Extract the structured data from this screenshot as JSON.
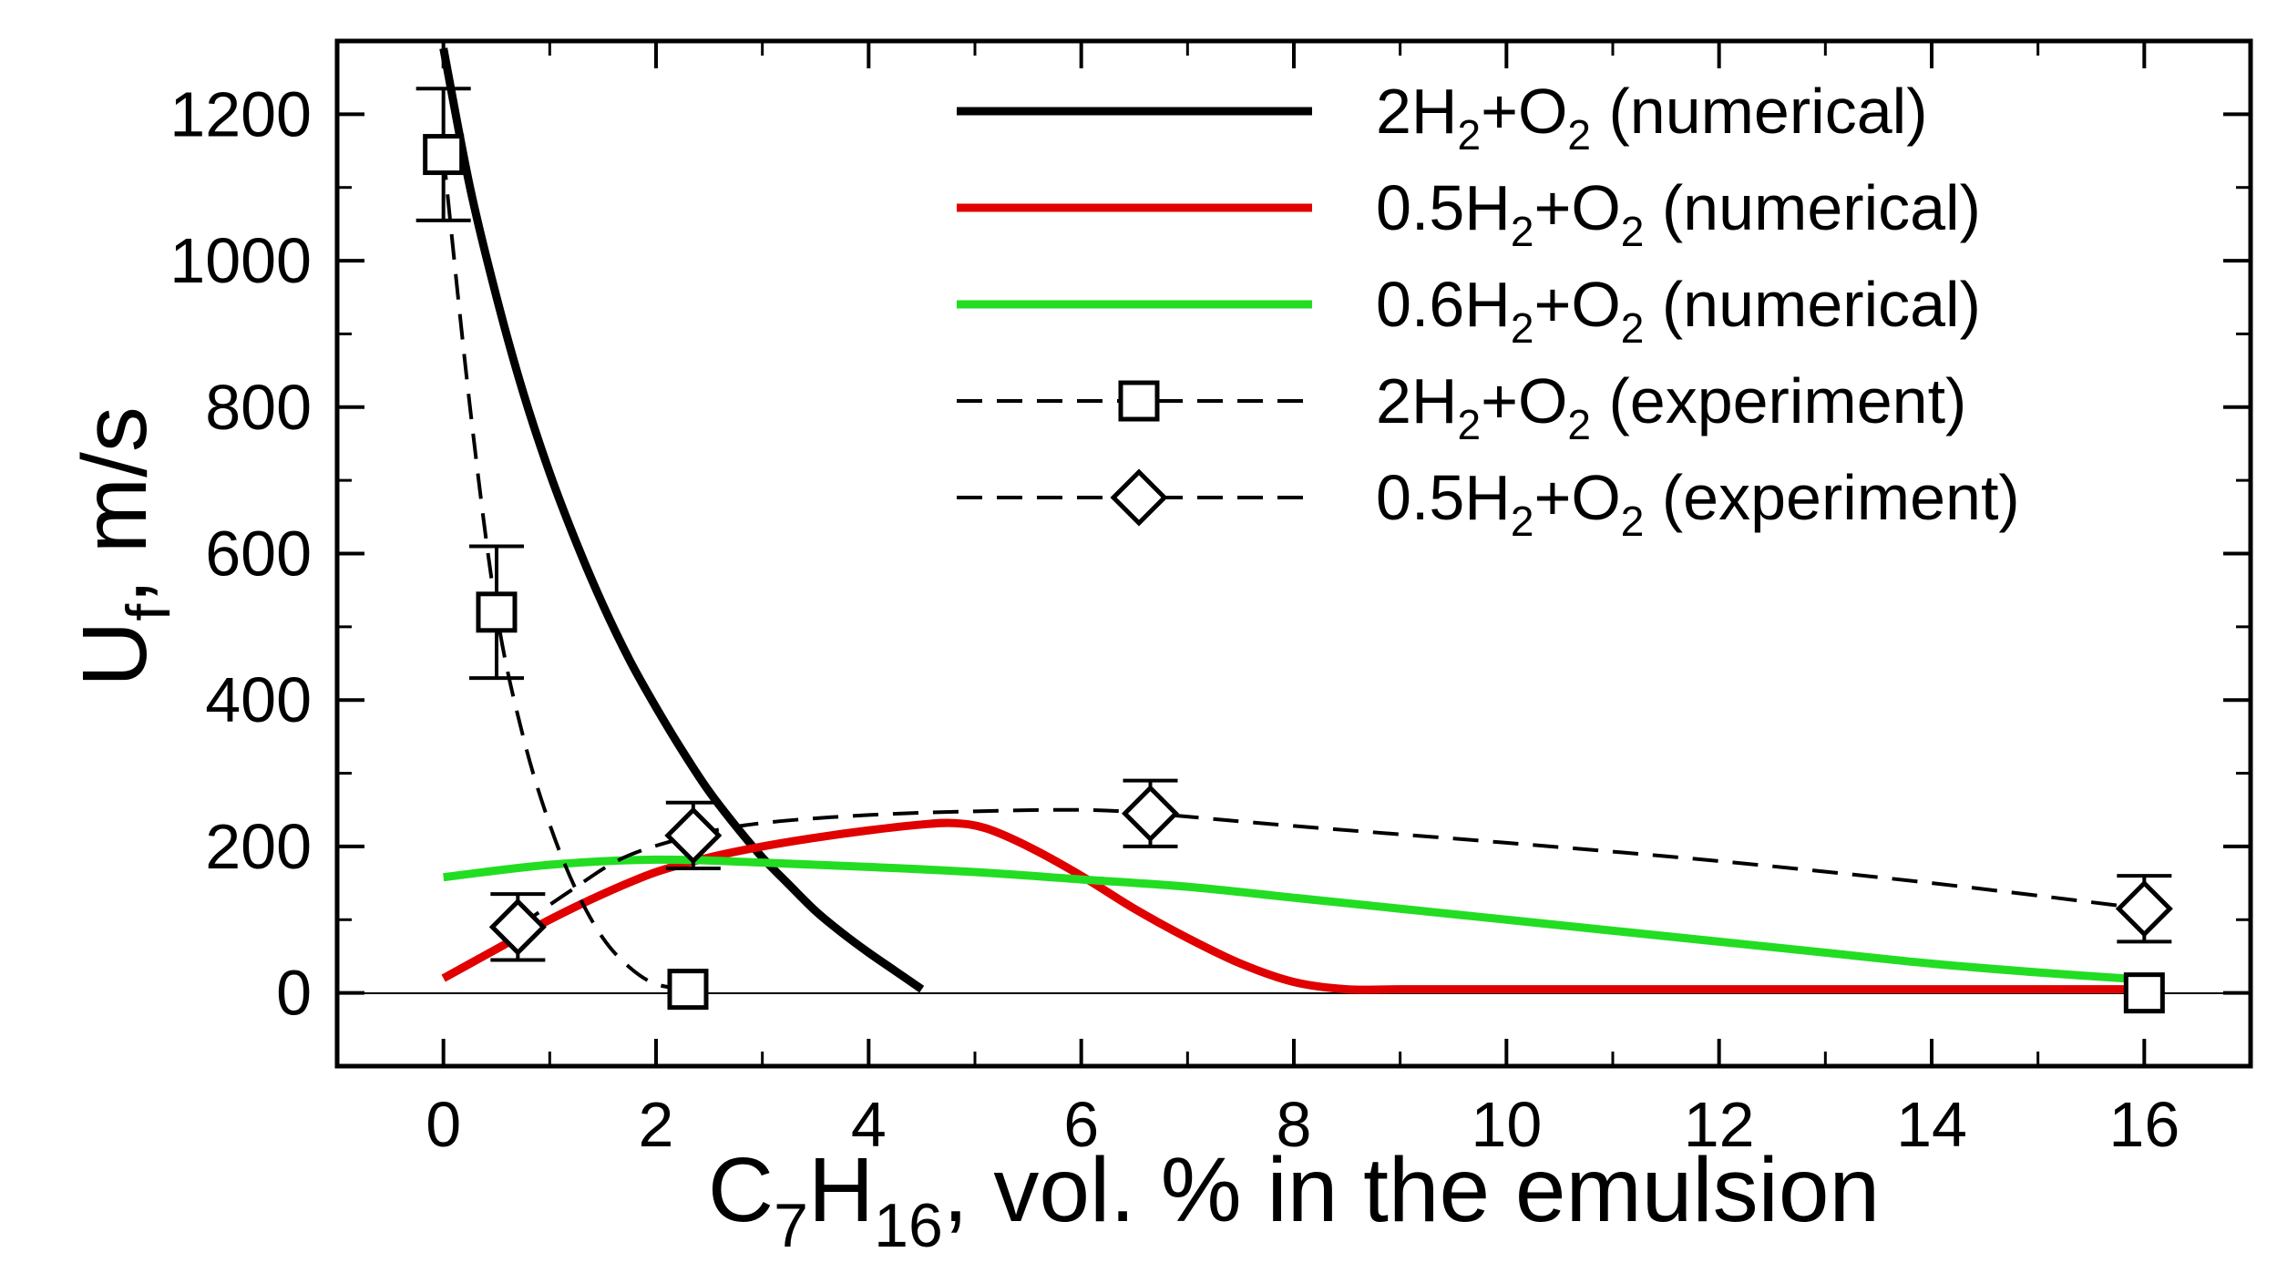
{
  "chart_data": {
    "type": "line",
    "xlabel": "C7H16, vol. % in the emulsion",
    "xlabel_parts": {
      "main": "C",
      "sub1": "7",
      "mid": "H",
      "sub2": "16",
      "rest": ", vol. % in the emulsion"
    },
    "ylabel": "Uf, m/s",
    "ylabel_parts": {
      "main": "U",
      "sub": "f",
      "rest": ", m/s"
    },
    "xlim": [
      -1,
      17
    ],
    "ylim": [
      -100,
      1300
    ],
    "xticks": [
      "0",
      "2",
      "4",
      "6",
      "8",
      "10",
      "12",
      "14",
      "16"
    ],
    "yticks": [
      "0",
      "200",
      "400",
      "600",
      "800",
      "1000",
      "1200"
    ],
    "zero_line": true,
    "series": [
      {
        "name": "2H2+O2 (numerical)",
        "label_parts": [
          "2H",
          "2",
          "+O",
          "2",
          " (numerical)"
        ],
        "kind": "line",
        "color": "#000000",
        "x": [
          0,
          0.25,
          0.5,
          0.75,
          1.0,
          1.25,
          1.5,
          1.75,
          2.0,
          2.25,
          2.5,
          2.75,
          3.0,
          3.25,
          3.5,
          3.75,
          4.0,
          4.25,
          4.5
        ],
        "y": [
          1290,
          1100,
          950,
          820,
          710,
          615,
          530,
          455,
          390,
          330,
          275,
          228,
          185,
          148,
          112,
          82,
          55,
          30,
          5
        ]
      },
      {
        "name": "0.5H2+O2 (numerical)",
        "label_parts": [
          "0.5H",
          "2",
          "+O",
          "2",
          " (numerical)"
        ],
        "kind": "line",
        "color": "#e00000",
        "x": [
          0,
          0.5,
          1.0,
          1.5,
          2.0,
          2.5,
          3.0,
          3.5,
          4.0,
          4.5,
          4.8,
          5.1,
          5.5,
          6.0,
          6.5,
          7.0,
          7.5,
          8.0,
          8.5,
          9,
          10,
          12,
          14,
          16
        ],
        "y": [
          20,
          60,
          100,
          135,
          165,
          185,
          200,
          212,
          222,
          230,
          232,
          225,
          200,
          160,
          115,
          75,
          40,
          15,
          5,
          5,
          5,
          5,
          5,
          5
        ]
      },
      {
        "name": "0.6H2+O2 (numerical)",
        "label_parts": [
          "0.6H",
          "2",
          "+O",
          "2",
          " (numerical)"
        ],
        "kind": "line",
        "color": "#22dd22",
        "x": [
          0,
          1,
          2,
          3,
          4,
          5,
          6,
          7,
          8,
          9,
          10,
          11,
          12,
          13,
          14,
          15,
          16
        ],
        "y": [
          158,
          175,
          182,
          178,
          172,
          165,
          155,
          145,
          130,
          115,
          100,
          85,
          70,
          55,
          40,
          28,
          18
        ]
      },
      {
        "name": "2H2+O2 (experiment)",
        "label_parts": [
          "2H",
          "2",
          "+O",
          "2",
          " (experiment)"
        ],
        "kind": "dashed-square",
        "color": "#000000",
        "x": [
          0,
          0.5,
          2.3,
          16
        ],
        "y": [
          1145,
          520,
          5,
          0
        ],
        "err": [
          90,
          90,
          0,
          0
        ],
        "curve_x": [
          0,
          0.25,
          0.5,
          0.75,
          1.0,
          1.25,
          1.5,
          1.75,
          2.0,
          2.3
        ],
        "curve_y": [
          1145,
          800,
          520,
          350,
          230,
          140,
          75,
          35,
          12,
          5
        ]
      },
      {
        "name": "0.5H2+O2 (experiment)",
        "label_parts": [
          "0.5H",
          "2",
          "+O",
          "2",
          " (experiment)"
        ],
        "kind": "dashed-diamond",
        "color": "#000000",
        "x": [
          0.7,
          2.35,
          6.65,
          16
        ],
        "y": [
          90,
          215,
          245,
          115
        ],
        "err": [
          45,
          45,
          45,
          45
        ],
        "curve_x": [
          0.7,
          1.2,
          1.7,
          2.35,
          3.0,
          4.0,
          5.0,
          6.0,
          6.65,
          8.0,
          10.0,
          12.0,
          14.0,
          16.0
        ],
        "curve_y": [
          90,
          140,
          185,
          215,
          232,
          243,
          248,
          250,
          245,
          228,
          205,
          180,
          150,
          115
        ]
      }
    ]
  }
}
